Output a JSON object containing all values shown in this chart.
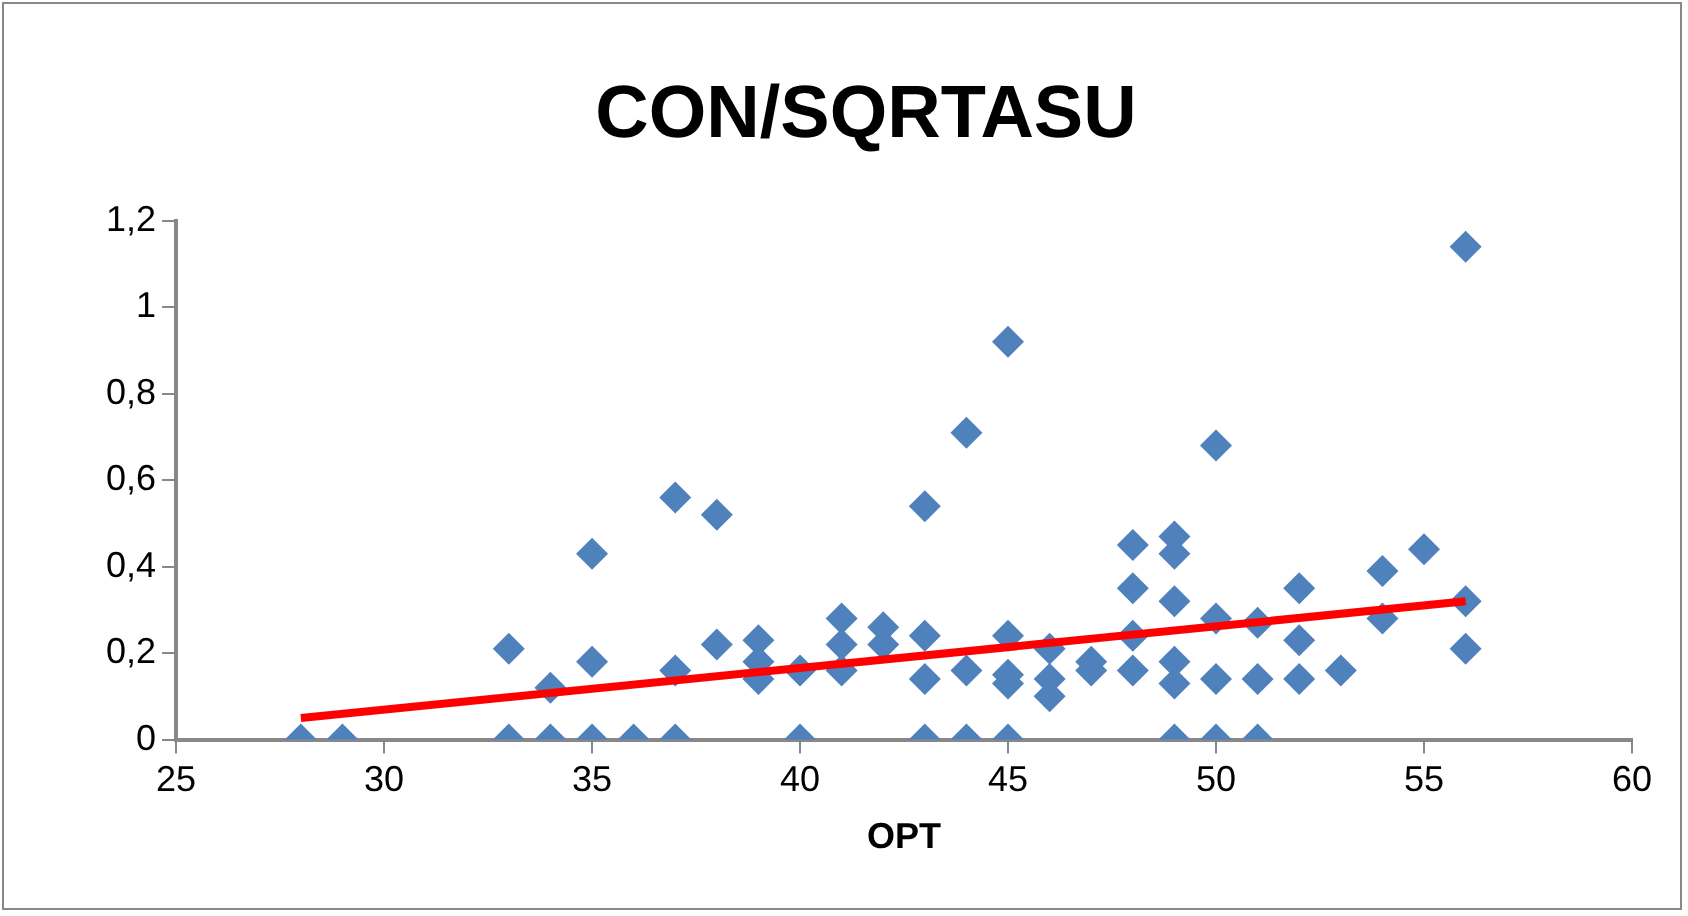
{
  "chart_data": {
    "type": "scatter",
    "title": "CON/SQRTASU",
    "xlabel": "OPT",
    "xlim": [
      25,
      60
    ],
    "xticks": [
      25,
      30,
      35,
      40,
      45,
      50,
      55,
      60
    ],
    "ylim": [
      0,
      1.2
    ],
    "yticks": [
      {
        "value": 0,
        "label": "0"
      },
      {
        "value": 0.2,
        "label": "0,2"
      },
      {
        "value": 0.4,
        "label": "0,4"
      },
      {
        "value": 0.6,
        "label": "0,6"
      },
      {
        "value": 0.8,
        "label": "0,8"
      },
      {
        "value": 1,
        "label": "1"
      },
      {
        "value": 1.2,
        "label": "1,2"
      }
    ],
    "grid": false,
    "legend": false,
    "marker": "diamond",
    "series": [
      {
        "type": "scatter",
        "color": "#4f81bd",
        "x": [
          28,
          29,
          33,
          33,
          34,
          34,
          35,
          35,
          35,
          36,
          37,
          37,
          37,
          38,
          38,
          39,
          39,
          39,
          40,
          40,
          41,
          41,
          41,
          42,
          42,
          43,
          43,
          43,
          43,
          44,
          44,
          44,
          45,
          45,
          45,
          45,
          45,
          46,
          46,
          46,
          47,
          47,
          48,
          48,
          48,
          48,
          49,
          49,
          49,
          49,
          49,
          49,
          50,
          50,
          50,
          50,
          51,
          51,
          51,
          52,
          52,
          52,
          53,
          54,
          54,
          55,
          56,
          56,
          56
        ],
        "values": [
          0,
          0,
          0.21,
          0,
          0.12,
          0,
          0.43,
          0.18,
          0,
          0,
          0.56,
          0.16,
          0,
          0.52,
          0.22,
          0.23,
          0.18,
          0.14,
          0.16,
          0,
          0.28,
          0.22,
          0.16,
          0.26,
          0.22,
          0.54,
          0.24,
          0.14,
          0,
          0.71,
          0.16,
          0,
          0.92,
          0.24,
          0.15,
          0.13,
          0,
          0.21,
          0.14,
          0.1,
          0.18,
          0.16,
          0.45,
          0.35,
          0.24,
          0.16,
          0.47,
          0.43,
          0.32,
          0.18,
          0.13,
          0,
          0.68,
          0.28,
          0.14,
          0,
          0.27,
          0.14,
          0,
          0.35,
          0.23,
          0.14,
          0.16,
          0.39,
          0.28,
          0.44,
          1.14,
          0.32,
          0.21
        ]
      },
      {
        "type": "line",
        "color": "#ff0000",
        "x": [
          28,
          56
        ],
        "values": [
          0.05,
          0.32
        ],
        "marker": "none"
      }
    ]
  }
}
